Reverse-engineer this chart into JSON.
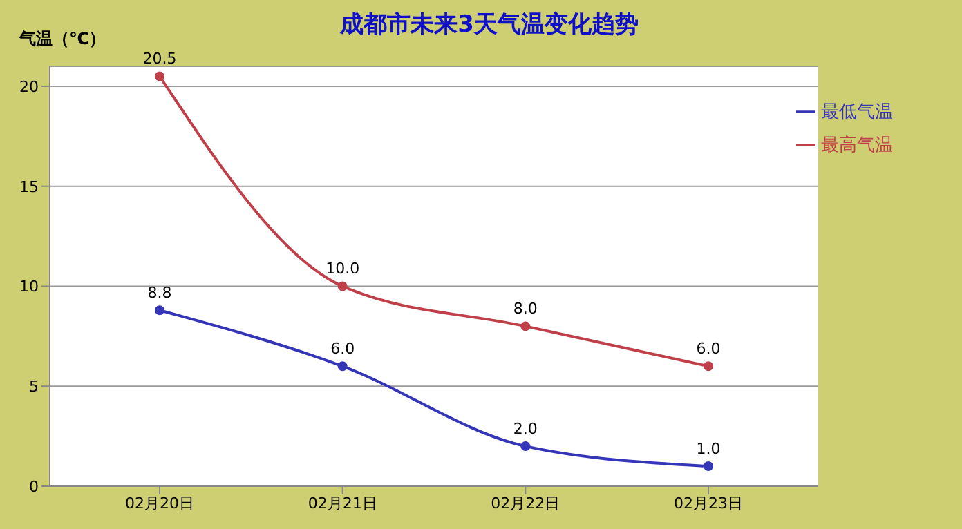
{
  "chart_data": {
    "type": "line",
    "title": "成都市未来3天气温变化趋势",
    "ylabel": "气温（℃）",
    "categories": [
      "02月20日",
      "02月21日",
      "02月22日",
      "02月23日"
    ],
    "series": [
      {
        "name": "最低气温",
        "color": "#3535b8",
        "values": [
          8.8,
          6.0,
          2.0,
          1.0
        ],
        "value_labels": [
          "8.8",
          "6.0",
          "2.0",
          "1.0"
        ]
      },
      {
        "name": "最高气温",
        "color": "#c0404a",
        "values": [
          20.5,
          10.0,
          8.0,
          6.0
        ],
        "value_labels": [
          "20.5",
          "10.0",
          "8.0",
          "6.0"
        ]
      }
    ],
    "ylim": [
      0,
      21
    ],
    "yticks": [
      0,
      5,
      10,
      15,
      20
    ],
    "grid": "y",
    "legend": "top right",
    "marker": "circle",
    "line_style": "solid"
  }
}
